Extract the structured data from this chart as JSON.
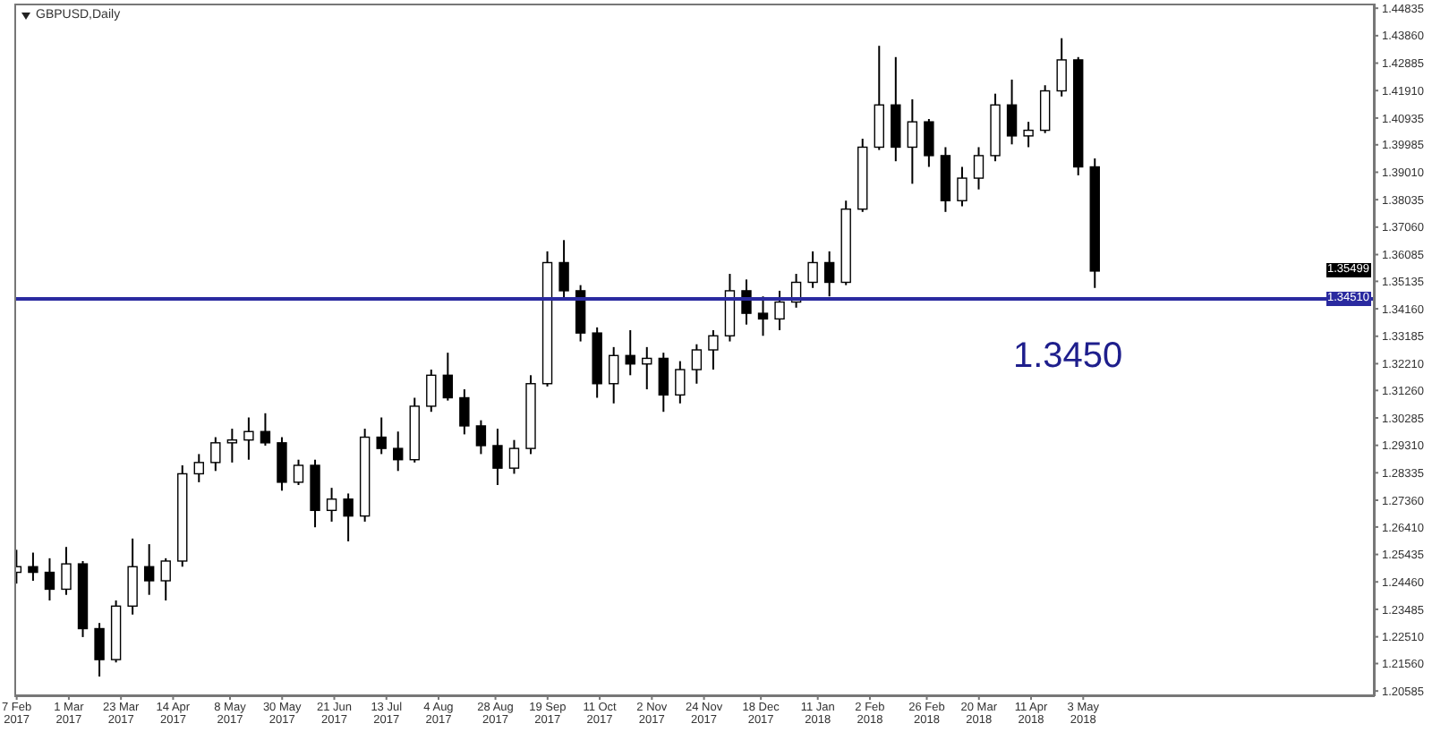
{
  "chart_data": {
    "type": "candlestick",
    "title": "GBPUSD,Daily",
    "color": "#000000",
    "x": [
      "2017-02-07",
      "2017-02-14",
      "2017-02-21",
      "2017-02-28",
      "2017-03-07",
      "2017-03-14",
      "2017-03-21",
      "2017-03-28",
      "2017-04-04",
      "2017-04-11",
      "2017-04-18",
      "2017-04-25",
      "2017-05-02",
      "2017-05-09",
      "2017-05-16",
      "2017-05-23",
      "2017-05-30",
      "2017-06-06",
      "2017-06-13",
      "2017-06-20",
      "2017-06-27",
      "2017-07-04",
      "2017-07-11",
      "2017-07-18",
      "2017-07-25",
      "2017-08-01",
      "2017-08-08",
      "2017-08-15",
      "2017-08-22",
      "2017-08-29",
      "2017-09-05",
      "2017-09-12",
      "2017-09-19",
      "2017-09-26",
      "2017-10-03",
      "2017-10-10",
      "2017-10-17",
      "2017-10-24",
      "2017-10-31",
      "2017-11-07",
      "2017-11-14",
      "2017-11-21",
      "2017-11-28",
      "2017-12-05",
      "2017-12-12",
      "2017-12-19",
      "2017-12-26",
      "2018-01-02",
      "2018-01-09",
      "2018-01-16",
      "2018-01-23",
      "2018-01-30",
      "2018-02-06",
      "2018-02-13",
      "2018-02-20",
      "2018-02-27",
      "2018-03-06",
      "2018-03-13",
      "2018-03-20",
      "2018-03-27",
      "2018-04-03",
      "2018-04-10",
      "2018-04-17",
      "2018-04-24",
      "2018-05-01",
      "2018-05-08"
    ],
    "ohlc": [
      [
        1.248,
        1.256,
        1.244,
        1.25
      ],
      [
        1.25,
        1.255,
        1.245,
        1.248
      ],
      [
        1.248,
        1.253,
        1.238,
        1.242
      ],
      [
        1.242,
        1.257,
        1.24,
        1.251
      ],
      [
        1.251,
        1.252,
        1.225,
        1.228
      ],
      [
        1.228,
        1.23,
        1.211,
        1.217
      ],
      [
        1.217,
        1.238,
        1.216,
        1.236
      ],
      [
        1.236,
        1.26,
        1.233,
        1.25
      ],
      [
        1.25,
        1.258,
        1.24,
        1.245
      ],
      [
        1.245,
        1.253,
        1.238,
        1.252
      ],
      [
        1.252,
        1.286,
        1.25,
        1.283
      ],
      [
        1.283,
        1.29,
        1.28,
        1.287
      ],
      [
        1.287,
        1.296,
        1.284,
        1.294
      ],
      [
        1.294,
        1.299,
        1.287,
        1.295
      ],
      [
        1.295,
        1.303,
        1.288,
        1.298
      ],
      [
        1.298,
        1.3045,
        1.293,
        1.294
      ],
      [
        1.294,
        1.296,
        1.277,
        1.28
      ],
      [
        1.28,
        1.288,
        1.279,
        1.286
      ],
      [
        1.286,
        1.288,
        1.264,
        1.27
      ],
      [
        1.27,
        1.278,
        1.266,
        1.274
      ],
      [
        1.274,
        1.276,
        1.259,
        1.268
      ],
      [
        1.268,
        1.299,
        1.266,
        1.296
      ],
      [
        1.296,
        1.303,
        1.29,
        1.292
      ],
      [
        1.292,
        1.298,
        1.284,
        1.288
      ],
      [
        1.288,
        1.31,
        1.287,
        1.307
      ],
      [
        1.307,
        1.32,
        1.305,
        1.318
      ],
      [
        1.318,
        1.326,
        1.309,
        1.31
      ],
      [
        1.31,
        1.313,
        1.297,
        1.3
      ],
      [
        1.3,
        1.302,
        1.29,
        1.293
      ],
      [
        1.293,
        1.299,
        1.279,
        1.285
      ],
      [
        1.285,
        1.295,
        1.283,
        1.292
      ],
      [
        1.292,
        1.318,
        1.29,
        1.315
      ],
      [
        1.315,
        1.362,
        1.314,
        1.358
      ],
      [
        1.358,
        1.366,
        1.345,
        1.348
      ],
      [
        1.348,
        1.35,
        1.33,
        1.333
      ],
      [
        1.333,
        1.335,
        1.31,
        1.315
      ],
      [
        1.315,
        1.328,
        1.308,
        1.325
      ],
      [
        1.325,
        1.334,
        1.318,
        1.322
      ],
      [
        1.322,
        1.328,
        1.313,
        1.324
      ],
      [
        1.324,
        1.326,
        1.305,
        1.311
      ],
      [
        1.311,
        1.323,
        1.308,
        1.32
      ],
      [
        1.32,
        1.329,
        1.315,
        1.327
      ],
      [
        1.327,
        1.334,
        1.32,
        1.332
      ],
      [
        1.332,
        1.354,
        1.33,
        1.348
      ],
      [
        1.348,
        1.352,
        1.336,
        1.34
      ],
      [
        1.34,
        1.346,
        1.332,
        1.338
      ],
      [
        1.338,
        1.348,
        1.334,
        1.344
      ],
      [
        1.344,
        1.354,
        1.342,
        1.351
      ],
      [
        1.351,
        1.362,
        1.349,
        1.358
      ],
      [
        1.358,
        1.362,
        1.346,
        1.351
      ],
      [
        1.351,
        1.38,
        1.35,
        1.377
      ],
      [
        1.377,
        1.402,
        1.376,
        1.399
      ],
      [
        1.399,
        1.435,
        1.398,
        1.414
      ],
      [
        1.414,
        1.431,
        1.394,
        1.399
      ],
      [
        1.399,
        1.416,
        1.386,
        1.408
      ],
      [
        1.408,
        1.409,
        1.392,
        1.396
      ],
      [
        1.396,
        1.399,
        1.376,
        1.38
      ],
      [
        1.38,
        1.392,
        1.378,
        1.388
      ],
      [
        1.388,
        1.399,
        1.384,
        1.396
      ],
      [
        1.396,
        1.418,
        1.394,
        1.414
      ],
      [
        1.414,
        1.423,
        1.4,
        1.403
      ],
      [
        1.403,
        1.408,
        1.399,
        1.405
      ],
      [
        1.405,
        1.421,
        1.404,
        1.419
      ],
      [
        1.419,
        1.4377,
        1.417,
        1.43
      ],
      [
        1.43,
        1.431,
        1.389,
        1.392
      ],
      [
        1.392,
        1.395,
        1.349,
        1.355
      ]
    ],
    "xlim": [
      "2017-02-06",
      "2018-09-03"
    ],
    "xticks": [
      {
        "value": "2017-02-07",
        "label": "7 Feb 2017"
      },
      {
        "value": "2017-03-01",
        "label": "1 Mar 2017"
      },
      {
        "value": "2017-03-23",
        "label": "23 Mar 2017"
      },
      {
        "value": "2017-04-14",
        "label": "14 Apr 2017"
      },
      {
        "value": "2017-05-08",
        "label": "8 May 2017"
      },
      {
        "value": "2017-05-30",
        "label": "30 May 2017"
      },
      {
        "value": "2017-06-21",
        "label": "21 Jun 2017"
      },
      {
        "value": "2017-07-13",
        "label": "13 Jul 2017"
      },
      {
        "value": "2017-08-04",
        "label": "4 Aug 2017"
      },
      {
        "value": "2017-08-28",
        "label": "28 Aug 2017"
      },
      {
        "value": "2017-09-19",
        "label": "19 Sep 2017"
      },
      {
        "value": "2017-10-11",
        "label": "11 Oct 2017"
      },
      {
        "value": "2017-11-02",
        "label": "2 Nov 2017"
      },
      {
        "value": "2017-11-24",
        "label": "24 Nov 2017"
      },
      {
        "value": "2017-12-18",
        "label": "18 Dec 2017"
      },
      {
        "value": "2018-01-11",
        "label": "11 Jan 2018"
      },
      {
        "value": "2018-02-02",
        "label": "2 Feb 2018"
      },
      {
        "value": "2018-02-26",
        "label": "26 Feb 2018"
      },
      {
        "value": "2018-03-20",
        "label": "20 Mar 2018"
      },
      {
        "value": "2018-04-11",
        "label": "11 Apr 2018"
      },
      {
        "value": "2018-05-03",
        "label": "3 May 2018"
      }
    ],
    "ylim": [
      1.204,
      1.45
    ],
    "yticks": [
      1.44835,
      {
        "value": 1.4386,
        "label": "1.43860"
      },
      1.42885,
      {
        "value": 1.4191,
        "label": "1.41910"
      },
      1.40935,
      1.39985,
      {
        "value": 1.3901,
        "label": "1.39010"
      },
      1.38035,
      {
        "value": 1.3706,
        "label": "1.37060"
      },
      1.36085,
      1.35135,
      {
        "value": 1.3416,
        "label": "1.34160"
      },
      1.33185,
      {
        "value": 1.3221,
        "label": "1.32210"
      },
      {
        "value": 1.3126,
        "label": "1.31260"
      },
      1.30285,
      {
        "value": 1.2931,
        "label": "1.29310"
      },
      1.28335,
      {
        "value": 1.2736,
        "label": "1.27360"
      },
      {
        "value": 1.2641,
        "label": "1.26410"
      },
      1.25435,
      {
        "value": 1.2446,
        "label": "1.24460"
      },
      1.23485,
      {
        "value": 1.2251,
        "label": "1.22510"
      },
      {
        "value": 1.2156,
        "label": "1.21560"
      },
      1.20585
    ],
    "ref_lines": [
      {
        "axis": "y",
        "value": 1.3451,
        "label": "1.34510",
        "color": "#2a2aa0"
      }
    ],
    "annotations": [
      "1.3450",
      {
        "text": "1.35499",
        "y": 1.35499
      }
    ]
  }
}
